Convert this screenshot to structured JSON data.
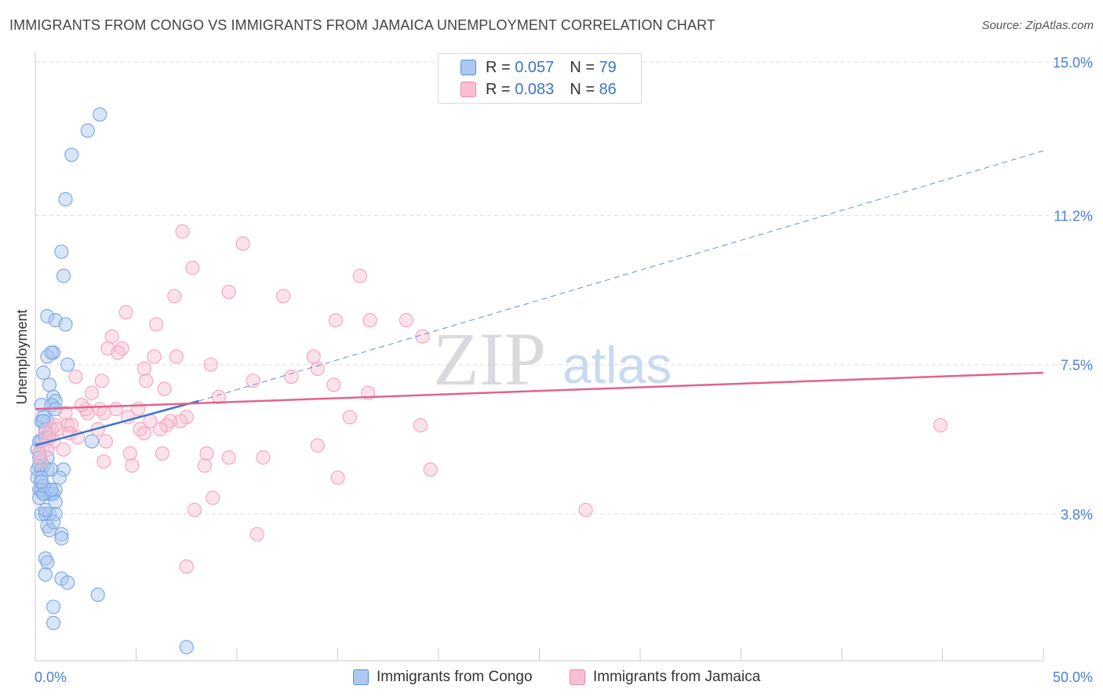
{
  "title": "IMMIGRANTS FROM CONGO VS IMMIGRANTS FROM JAMAICA UNEMPLOYMENT CORRELATION CHART",
  "source": "Source: ZipAtlas.com",
  "watermark": {
    "zip": "ZIP",
    "atlas": "atlas"
  },
  "legend": {
    "r_label": "R =",
    "n_label": "N =",
    "rows": [
      {
        "name": "Immigrants from Congo",
        "r": "0.057",
        "n": "79",
        "fill": "#aac8f0",
        "stroke": "#5b8fd8"
      },
      {
        "name": "Immigrants from Jamaica",
        "r": "0.083",
        "n": "86",
        "fill": "#f9c0d3",
        "stroke": "#e58aa8"
      }
    ]
  },
  "colors": {
    "blue_point": "#7fa9e6",
    "blue_line": "#3b74cc",
    "pink_point": "#f2a7c0",
    "pink_line": "#e0638f",
    "grid": "#dddddd",
    "axis_text": "#4a7fd4"
  },
  "chart_data": {
    "type": "scatter",
    "title": "IMMIGRANTS FROM CONGO VS IMMIGRANTS FROM JAMAICA UNEMPLOYMENT CORRELATION CHART",
    "xlabel": "",
    "ylabel": "Unemployment",
    "xlim": [
      0,
      50
    ],
    "ylim": [
      0,
      15.5
    ],
    "x_tick_labels": [
      "0.0%",
      "50.0%"
    ],
    "y_ticks": [
      3.8,
      7.5,
      11.2,
      15.0
    ],
    "y_tick_labels": [
      "3.8%",
      "7.5%",
      "11.2%",
      "15.0%"
    ],
    "grid": true,
    "series": [
      {
        "name": "Immigrants from Congo",
        "R": 0.057,
        "N": 79,
        "trend": {
          "x0": 0,
          "y0": 5.5,
          "x1": 8.1,
          "y1": 6.6,
          "dash_x1": 50,
          "dash_y1": 12.8
        },
        "points": [
          [
            3.2,
            13.7
          ],
          [
            2.6,
            13.3
          ],
          [
            1.8,
            12.7
          ],
          [
            1.5,
            11.6
          ],
          [
            1.3,
            10.3
          ],
          [
            1.4,
            9.7
          ],
          [
            0.6,
            8.7
          ],
          [
            1.0,
            8.6
          ],
          [
            1.5,
            8.5
          ],
          [
            0.9,
            7.8
          ],
          [
            0.6,
            7.7
          ],
          [
            0.8,
            7.8
          ],
          [
            1.6,
            7.5
          ],
          [
            0.4,
            7.3
          ],
          [
            0.7,
            7.0
          ],
          [
            0.9,
            6.7
          ],
          [
            1.0,
            6.6
          ],
          [
            0.3,
            6.5
          ],
          [
            0.8,
            6.5
          ],
          [
            1.0,
            6.4
          ],
          [
            0.3,
            6.1
          ],
          [
            0.6,
            6.1
          ],
          [
            0.4,
            6.2
          ],
          [
            0.5,
            5.9
          ],
          [
            0.2,
            5.6
          ],
          [
            0.3,
            5.6
          ],
          [
            0.5,
            5.7
          ],
          [
            0.7,
            5.8
          ],
          [
            2.8,
            5.6
          ],
          [
            0.1,
            5.4
          ],
          [
            0.2,
            5.3
          ],
          [
            0.3,
            5.1
          ],
          [
            0.4,
            5.0
          ],
          [
            0.2,
            5.0
          ],
          [
            0.1,
            4.9
          ],
          [
            0.3,
            4.9
          ],
          [
            0.6,
            4.9
          ],
          [
            0.8,
            4.9
          ],
          [
            1.4,
            4.9
          ],
          [
            0.1,
            4.7
          ],
          [
            0.3,
            4.7
          ],
          [
            1.2,
            4.7
          ],
          [
            0.2,
            4.4
          ],
          [
            0.3,
            4.4
          ],
          [
            0.4,
            4.3
          ],
          [
            0.5,
            4.3
          ],
          [
            0.6,
            4.4
          ],
          [
            0.7,
            4.3
          ],
          [
            0.8,
            4.3
          ],
          [
            0.9,
            4.3
          ],
          [
            1.0,
            4.4
          ],
          [
            0.2,
            4.2
          ],
          [
            0.4,
            4.3
          ],
          [
            1.0,
            4.1
          ],
          [
            0.3,
            3.8
          ],
          [
            0.5,
            3.8
          ],
          [
            0.7,
            3.8
          ],
          [
            1.0,
            3.8
          ],
          [
            0.6,
            3.5
          ],
          [
            1.3,
            3.3
          ],
          [
            1.3,
            3.2
          ],
          [
            0.7,
            3.4
          ],
          [
            0.5,
            2.7
          ],
          [
            0.6,
            2.6
          ],
          [
            0.5,
            2.3
          ],
          [
            1.3,
            2.2
          ],
          [
            1.6,
            2.1
          ],
          [
            3.1,
            1.8
          ],
          [
            0.9,
            1.5
          ],
          [
            0.9,
            1.1
          ],
          [
            7.5,
            0.5
          ],
          [
            0.4,
            6.1
          ],
          [
            0.6,
            5.2
          ],
          [
            0.2,
            5.2
          ],
          [
            0.4,
            4.5
          ],
          [
            0.8,
            4.4
          ],
          [
            0.5,
            3.9
          ],
          [
            0.9,
            3.6
          ],
          [
            0.3,
            4.6
          ]
        ]
      },
      {
        "name": "Immigrants from Jamaica",
        "R": 0.083,
        "N": 86,
        "trend": {
          "x0": 0,
          "y0": 6.4,
          "x1": 50,
          "y1": 7.3
        },
        "points": [
          [
            7.3,
            10.8
          ],
          [
            10.3,
            10.5
          ],
          [
            7.8,
            9.9
          ],
          [
            16.1,
            9.7
          ],
          [
            9.6,
            9.3
          ],
          [
            12.3,
            9.2
          ],
          [
            6.9,
            9.2
          ],
          [
            4.5,
            8.8
          ],
          [
            6.0,
            8.5
          ],
          [
            14.9,
            8.6
          ],
          [
            16.6,
            8.6
          ],
          [
            18.4,
            8.6
          ],
          [
            3.8,
            8.2
          ],
          [
            19.2,
            8.2
          ],
          [
            3.6,
            7.9
          ],
          [
            4.3,
            7.9
          ],
          [
            4.1,
            7.8
          ],
          [
            5.9,
            7.7
          ],
          [
            7.0,
            7.7
          ],
          [
            13.8,
            7.7
          ],
          [
            5.4,
            7.4
          ],
          [
            8.7,
            7.5
          ],
          [
            14.0,
            7.4
          ],
          [
            2.0,
            7.2
          ],
          [
            3.3,
            7.1
          ],
          [
            5.5,
            7.1
          ],
          [
            10.8,
            7.1
          ],
          [
            12.7,
            7.2
          ],
          [
            14.8,
            7.0
          ],
          [
            6.4,
            6.9
          ],
          [
            2.8,
            6.8
          ],
          [
            16.5,
            6.8
          ],
          [
            9.1,
            6.7
          ],
          [
            4.0,
            6.4
          ],
          [
            5.1,
            6.4
          ],
          [
            3.2,
            6.4
          ],
          [
            2.6,
            6.3
          ],
          [
            1.5,
            6.3
          ],
          [
            2.5,
            6.4
          ],
          [
            3.4,
            6.3
          ],
          [
            4.6,
            6.2
          ],
          [
            5.7,
            6.1
          ],
          [
            7.5,
            6.2
          ],
          [
            7.2,
            6.1
          ],
          [
            6.7,
            6.1
          ],
          [
            6.5,
            6.0
          ],
          [
            15.6,
            6.2
          ],
          [
            1.0,
            6.0
          ],
          [
            1.6,
            6.0
          ],
          [
            1.8,
            6.0
          ],
          [
            0.8,
            5.9
          ],
          [
            3.1,
            5.9
          ],
          [
            5.2,
            5.9
          ],
          [
            6.2,
            5.9
          ],
          [
            44.9,
            6.0
          ],
          [
            19.1,
            6.0
          ],
          [
            0.5,
            5.8
          ],
          [
            1.7,
            5.8
          ],
          [
            2.1,
            5.7
          ],
          [
            5.4,
            5.8
          ],
          [
            0.9,
            5.6
          ],
          [
            0.4,
            5.5
          ],
          [
            14.0,
            5.5
          ],
          [
            3.5,
            5.6
          ],
          [
            0.6,
            5.4
          ],
          [
            1.4,
            5.4
          ],
          [
            4.7,
            5.3
          ],
          [
            6.3,
            5.3
          ],
          [
            8.5,
            5.3
          ],
          [
            9.6,
            5.2
          ],
          [
            11.3,
            5.2
          ],
          [
            3.4,
            5.1
          ],
          [
            0.3,
            5.1
          ],
          [
            4.8,
            5.0
          ],
          [
            8.4,
            5.0
          ],
          [
            19.6,
            4.9
          ],
          [
            15.0,
            4.7
          ],
          [
            8.8,
            4.2
          ],
          [
            7.9,
            3.9
          ],
          [
            27.3,
            3.9
          ],
          [
            11.0,
            3.3
          ],
          [
            7.5,
            2.5
          ],
          [
            0.7,
            5.7
          ],
          [
            1.1,
            5.9
          ],
          [
            2.3,
            6.5
          ],
          [
            0.2,
            5.3
          ]
        ]
      }
    ]
  }
}
